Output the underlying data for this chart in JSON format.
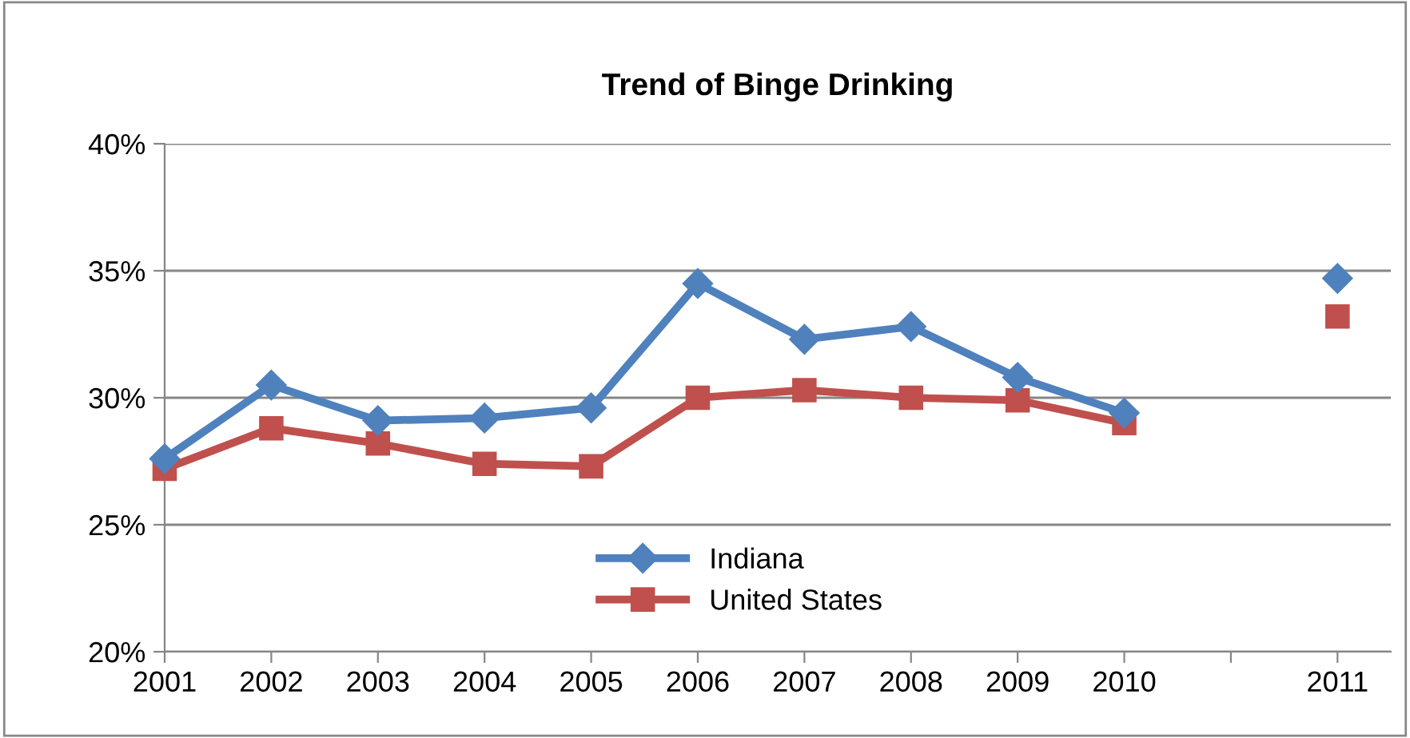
{
  "chart_data": {
    "type": "line",
    "title": "Trend of Binge Drinking",
    "categories": [
      "2001",
      "2002",
      "2003",
      "2004",
      "2005",
      "2006",
      "2007",
      "2008",
      "2009",
      "2010",
      null,
      "2011"
    ],
    "series": [
      {
        "name": "Indiana",
        "color": "#4f81bd",
        "marker": "diamond",
        "values": [
          27.6,
          30.5,
          29.1,
          29.2,
          29.6,
          34.5,
          32.3,
          32.8,
          30.8,
          29.4,
          null,
          34.7
        ]
      },
      {
        "name": "United States",
        "color": "#c0504d",
        "marker": "square",
        "values": [
          27.2,
          28.8,
          28.2,
          27.4,
          27.3,
          30.0,
          30.3,
          30.0,
          29.9,
          29.0,
          null,
          33.2
        ]
      }
    ],
    "ylim": [
      20,
      40
    ],
    "yticks": [
      {
        "value": 20,
        "label": "20%"
      },
      {
        "value": 25,
        "label": "25%"
      },
      {
        "value": 30,
        "label": "30%"
      },
      {
        "value": 35,
        "label": "35%"
      },
      {
        "value": 40,
        "label": "40%"
      }
    ],
    "grid": "y",
    "legend": "bottom",
    "line_style": "solid"
  }
}
